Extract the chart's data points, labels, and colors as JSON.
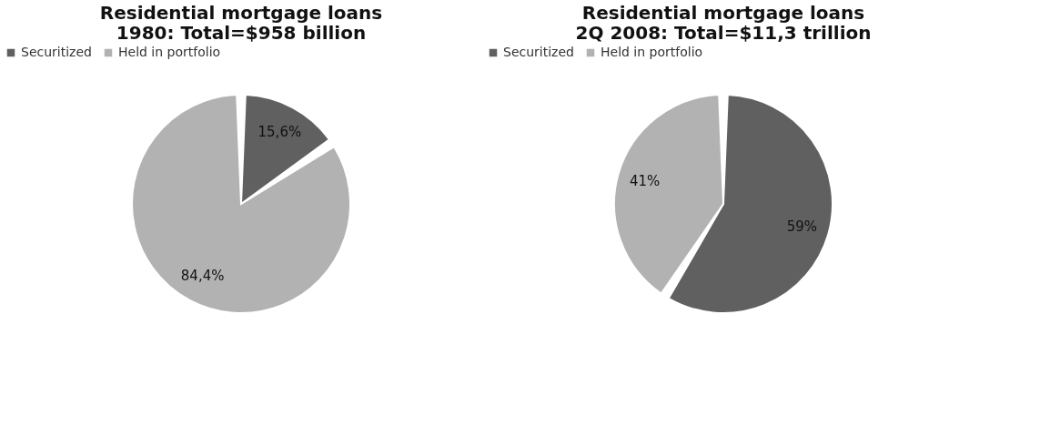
{
  "chart_data": [
    {
      "type": "pie",
      "title": "Residential mortgage loans\n1980: Total=$958 billion",
      "categories": [
        "Securitized",
        "Held in portfolio"
      ],
      "values": [
        15.6,
        84.4
      ],
      "colors": [
        "#606060",
        "#b2b2b2"
      ],
      "value_labels": [
        "15,6%",
        "84,4%"
      ],
      "legend": "top"
    },
    {
      "type": "pie",
      "title": "Residential mortgage loans\n2Q 2008: Total=$11,3 trillion",
      "categories": [
        "Securitized",
        "Held in portfolio"
      ],
      "values": [
        59,
        41
      ],
      "colors": [
        "#606060",
        "#b2b2b2"
      ],
      "value_labels": [
        "59%",
        "41%"
      ],
      "legend": "top"
    }
  ]
}
